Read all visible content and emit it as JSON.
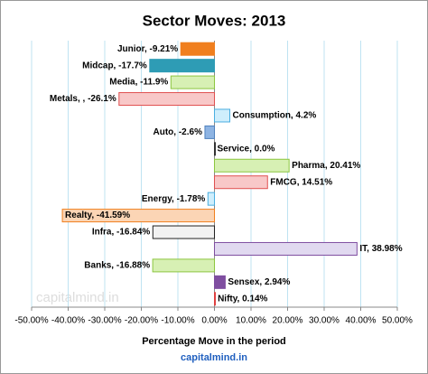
{
  "chart_data": {
    "type": "barh",
    "title": "Sector Moves: 2013",
    "xlabel": "Percentage Move in the period",
    "footer": "capitalmind.in",
    "watermark": "capitalmind.in",
    "values": [
      -9.21,
      -17.7,
      -11.9,
      -26.1,
      4.2,
      -2.6,
      0.0,
      20.41,
      14.51,
      -1.78,
      -41.59,
      -16.84,
      38.98,
      -16.88,
      2.94,
      0.14
    ],
    "value_labels": [
      "Junior, -9.21%",
      "Midcap, -17.7%",
      "Media, -11.9%",
      "Metals, , -26.1%",
      "Consumption, 4.2%",
      "Auto, -2.6%",
      "Service, 0.0%",
      "Pharma, 20.41%",
      "FMCG, 14.51%",
      "Energy, -1.78%",
      "Realty, -41.59%",
      "Infra, -16.84%",
      "IT, 38.98%",
      "Banks, -16.88%",
      "Sensex, 2.94%",
      "Nifty, 0.14%"
    ],
    "colors": [
      "#f07f1e",
      "#2e9cb5",
      "#d7f0b4",
      "#f8c8c8",
      "#cfeefc",
      "#8eb4e3",
      "#333333",
      "#d7f0b4",
      "#f8c8c8",
      "#cfeefc",
      "#fbd5b5",
      "#f2f2f2",
      "#e1d9f0",
      "#d7f0b4",
      "#7f4ea0",
      "#e04040"
    ],
    "edgecolors": [
      "#f07f1e",
      "#2e9cb5",
      "#8cc63f",
      "#e05050",
      "#4aaee0",
      "#4f81bd",
      "#333333",
      "#8cc63f",
      "#e05050",
      "#4aaee0",
      "#f07f1e",
      "#222222",
      "#7f4ea0",
      "#8cc63f",
      "#7f4ea0",
      "#e04040"
    ],
    "xlim": [
      -50,
      50
    ],
    "xticks": [
      {
        "value": -50,
        "label": "-50.00%"
      },
      {
        "value": -40,
        "label": "-40.00%"
      },
      {
        "value": -30,
        "label": "-30.00%"
      },
      {
        "value": -20,
        "label": "-20.00%"
      },
      {
        "value": -10,
        "label": "-10.00%"
      },
      {
        "value": 0,
        "label": "0.00%"
      },
      {
        "value": 10,
        "label": "10.00%"
      },
      {
        "value": 20,
        "label": "20.00%"
      },
      {
        "value": 30,
        "label": "30.00%"
      },
      {
        "value": 40,
        "label": "40.00%"
      },
      {
        "value": 50,
        "label": "50.00%"
      }
    ],
    "grid": true
  }
}
